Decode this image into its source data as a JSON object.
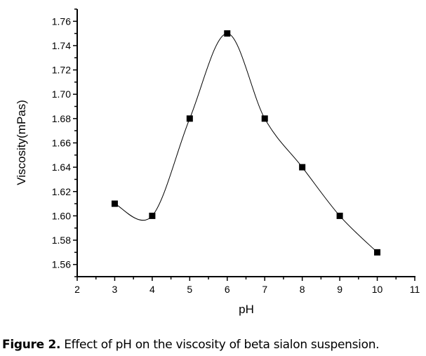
{
  "chart_data": {
    "type": "line",
    "title": "",
    "xlabel": "pH",
    "ylabel": "Viscosity(mPas)",
    "xlim": [
      2,
      11
    ],
    "ylim": [
      1.55,
      1.77
    ],
    "xticks": [
      2,
      3,
      4,
      5,
      6,
      7,
      8,
      9,
      10,
      11
    ],
    "yticks": [
      "1.56",
      "1.58",
      "1.60",
      "1.62",
      "1.64",
      "1.66",
      "1.68",
      "1.70",
      "1.72",
      "1.74",
      "1.76"
    ],
    "grid": false,
    "series": [
      {
        "name": "Viscosity",
        "marker": "square",
        "line": "smooth spline",
        "color": "#000000",
        "x": [
          3,
          4,
          5,
          6,
          7,
          8,
          9,
          10
        ],
        "y": [
          1.61,
          1.6,
          1.68,
          1.75,
          1.68,
          1.64,
          1.6,
          1.57
        ]
      }
    ]
  },
  "caption": {
    "label": "Figure 2.",
    "text": " Effect of pH on the viscosity of beta sialon suspension."
  }
}
